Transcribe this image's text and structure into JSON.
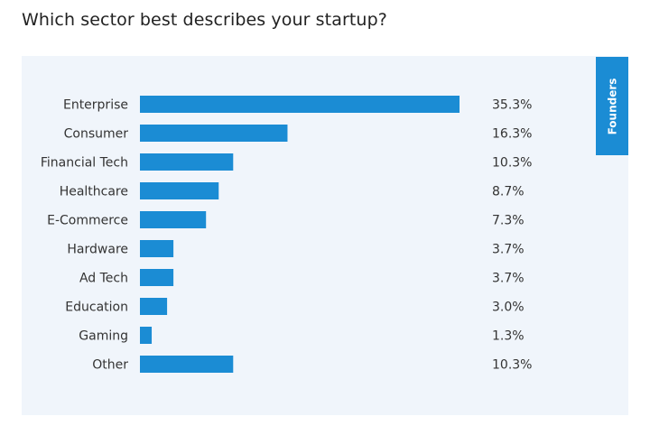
{
  "question": "Which sector best describes your startup?",
  "tab_label": "Founders",
  "colors": {
    "bar": "#1b8cd4",
    "panel": "#f0f5fb",
    "tab": "#1b8cd4"
  },
  "chart_data": {
    "type": "bar",
    "orientation": "horizontal",
    "categories": [
      "Enterprise",
      "Consumer",
      "Financial Tech",
      "Healthcare",
      "E-Commerce",
      "Hardware",
      "Ad Tech",
      "Education",
      "Gaming",
      "Other"
    ],
    "values": [
      35.3,
      16.3,
      10.3,
      8.7,
      7.3,
      3.7,
      3.7,
      3.0,
      1.3,
      10.3
    ],
    "value_labels": [
      "35.3%",
      "16.3%",
      "10.3%",
      "8.7%",
      "7.3%",
      "3.7%",
      "3.7%",
      "3.0%",
      "1.3%",
      "10.3%"
    ],
    "title": "Which sector best describes your startup?",
    "xlabel": "",
    "ylabel": "",
    "xlim": [
      0,
      35.3
    ],
    "grid": false,
    "legend": "none"
  }
}
